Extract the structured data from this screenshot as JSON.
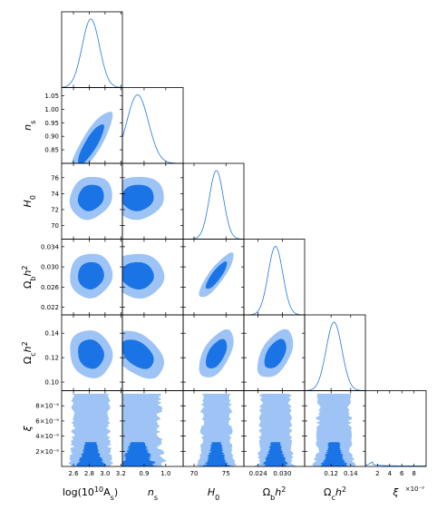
{
  "chart_data": {
    "type": "corner",
    "colors": {
      "outer": "#9dc4f5",
      "inner": "#1a74e6",
      "line": "#1f77e4"
    },
    "parameters": [
      {
        "key": "logA",
        "range": [
          2.45,
          3.22
        ],
        "ticks": [
          2.6,
          2.8,
          3.0,
          3.2
        ],
        "tick_labels": [
          "2.6",
          "2.8",
          "3.0",
          "3.2"
        ],
        "label_parts": [
          [
            "log(10",
            ""
          ],
          [
            "10",
            "sup"
          ],
          [
            "A",
            ""
          ],
          [
            "s",
            "sub"
          ],
          [
            ")",
            ""
          ]
        ],
        "mean": 2.82,
        "sigma": 0.11
      },
      {
        "key": "ns",
        "range": [
          0.8,
          1.08
        ],
        "ticks": [
          0.85,
          0.9,
          0.95,
          1.0,
          1.05
        ],
        "tick_labels": [
          "0.85",
          "0.90",
          "0.95",
          "1.00",
          "1.05"
        ],
        "xticks": [
          0.9,
          1.0
        ],
        "xtick_labels": [
          "0.9",
          "1.0"
        ],
        "label_parts": [
          [
            "n",
            "i"
          ],
          [
            "s",
            "sub"
          ]
        ],
        "mean": 0.87,
        "sigma": 0.05
      },
      {
        "key": "H0",
        "range": [
          68.3,
          77.8
        ],
        "ticks": [
          70,
          72,
          74,
          76
        ],
        "tick_labels": [
          "70",
          "72",
          "74",
          "76"
        ],
        "xticks": [
          70,
          75
        ],
        "xtick_labels": [
          "70",
          "75"
        ],
        "label_parts": [
          [
            "H",
            "i"
          ],
          [
            "0",
            "sub"
          ]
        ],
        "mean": 73.5,
        "sigma": 1.1
      },
      {
        "key": "Obh2",
        "range": [
          0.0205,
          0.0355
        ],
        "ticks": [
          0.022,
          0.026,
          0.03,
          0.034
        ],
        "tick_labels": [
          "0.022",
          "0.026",
          "0.030",
          "0.034"
        ],
        "xticks": [
          0.024,
          0.03
        ],
        "xtick_labels": [
          "0.024",
          "0.030"
        ],
        "label_parts": [
          [
            "Ω",
            ""
          ],
          [
            "b",
            "sub"
          ],
          [
            "h",
            "i"
          ],
          [
            "2",
            "sup"
          ]
        ],
        "mean": 0.0283,
        "sigma": 0.0018
      },
      {
        "key": "Och2",
        "range": [
          0.093,
          0.155
        ],
        "ticks": [
          0.1,
          0.12,
          0.14
        ],
        "tick_labels": [
          "0.10",
          "0.12",
          "0.14"
        ],
        "xticks": [
          0.12,
          0.14
        ],
        "xtick_labels": [
          "0.12",
          "0.14"
        ],
        "label_parts": [
          [
            "Ω",
            ""
          ],
          [
            "c",
            "sub"
          ],
          [
            "h",
            "i"
          ],
          [
            "2",
            "sup"
          ]
        ],
        "mean": 0.123,
        "sigma": 0.008
      },
      {
        "key": "xi",
        "range": [
          0.0,
          1e-08
        ],
        "ticks": [
          2e-09,
          4e-09,
          6e-09,
          8e-09
        ],
        "tick_labels": [
          "2×10⁻⁹",
          "4×10⁻⁹",
          "6×10⁻⁹",
          "8×10⁻⁹"
        ],
        "xticks": [
          2e-09,
          4e-09,
          6e-09,
          8e-09
        ],
        "xtick_labels": [
          "2",
          "4",
          "6",
          "8"
        ],
        "label_parts": [
          [
            "ξ",
            "i"
          ]
        ],
        "x_multiplier": "×10⁻⁹"
      }
    ],
    "correlations": [
      [
        1,
        0.85,
        0.15,
        0.05,
        -0.1
      ],
      [
        0.85,
        1,
        0.05,
        -0.05,
        -0.45
      ],
      [
        0.15,
        0.05,
        1,
        0.85,
        0.55
      ],
      [
        0.05,
        -0.05,
        0.85,
        1,
        0.5
      ],
      [
        -0.1,
        -0.45,
        0.55,
        0.5,
        1
      ]
    ]
  }
}
